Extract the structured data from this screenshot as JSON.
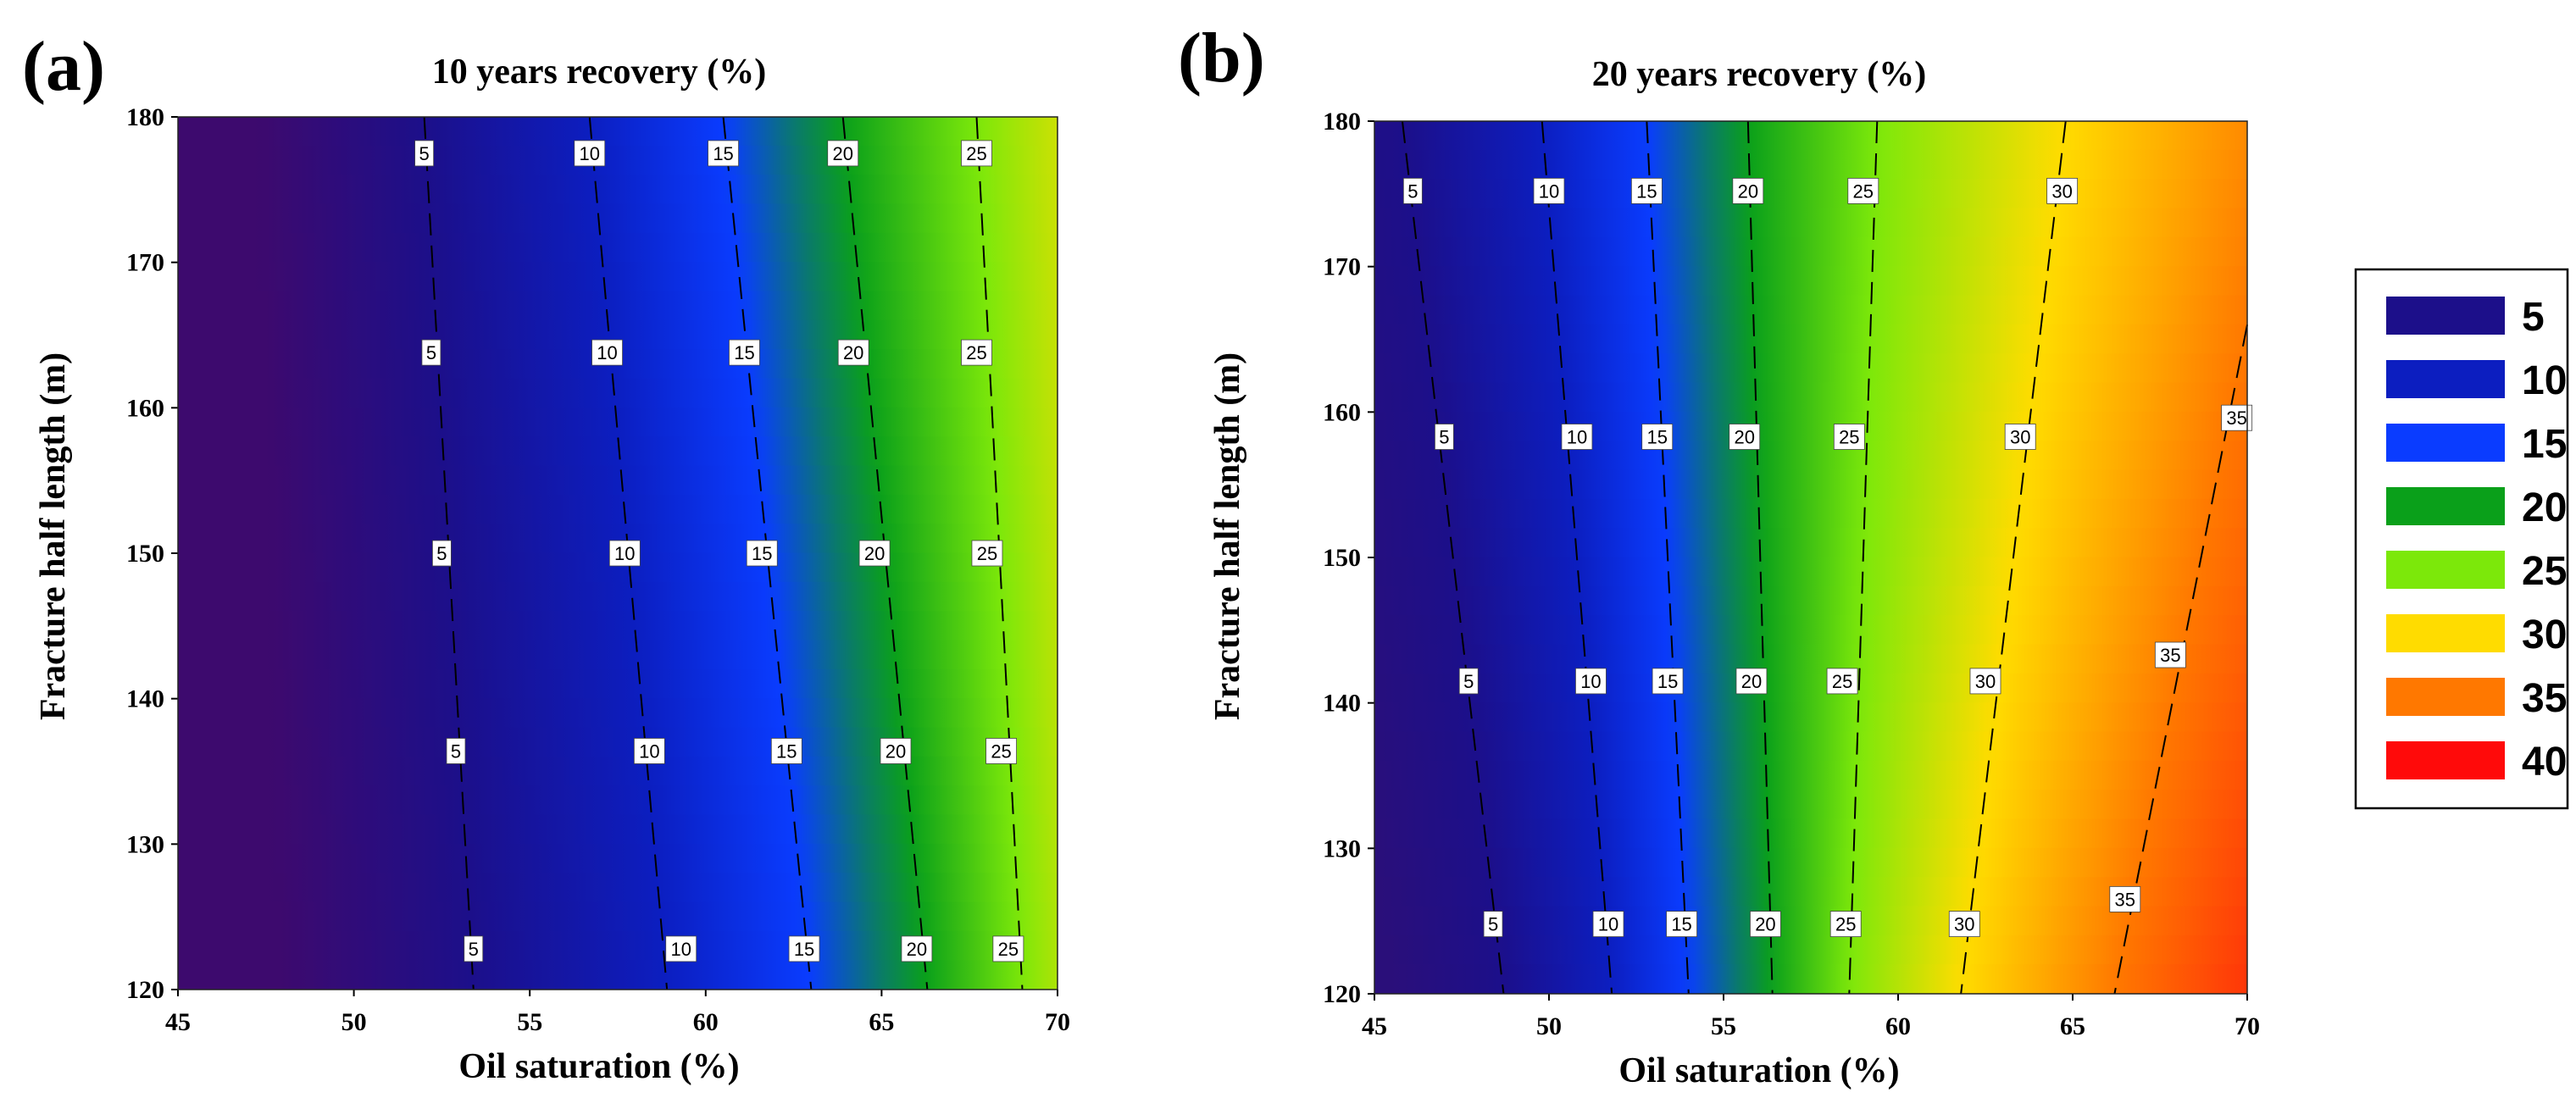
{
  "figure": {
    "legend": {
      "entries": [
        {
          "label": "5",
          "color": "#1c0f8a"
        },
        {
          "label": "10",
          "color": "#0c1ec0"
        },
        {
          "label": "15",
          "color": "#0a3cff"
        },
        {
          "label": "20",
          "color": "#0aa01a"
        },
        {
          "label": "25",
          "color": "#7ce80a"
        },
        {
          "label": "30",
          "color": "#ffdc00"
        },
        {
          "label": "35",
          "color": "#ff7800"
        },
        {
          "label": "40",
          "color": "#ff0a0a"
        }
      ]
    }
  },
  "chart_data": [
    {
      "type": "heatmap",
      "panel": "(a)",
      "title": "10 years recovery (%)",
      "xlabel": "Oil saturation (%)",
      "ylabel": "Fracture half length (m)",
      "xlim": [
        45,
        70
      ],
      "ylim": [
        120,
        180
      ],
      "xticks": [
        45,
        50,
        55,
        60,
        65,
        70
      ],
      "yticks": [
        120,
        130,
        140,
        150,
        160,
        170,
        180
      ],
      "color_stops": [
        {
          "v": 0,
          "c": "#3d0a6e"
        },
        {
          "v": 5,
          "c": "#1c0f8a"
        },
        {
          "v": 10,
          "c": "#0c1ec0"
        },
        {
          "v": 15,
          "c": "#0a3cff"
        },
        {
          "v": 18,
          "c": "#0a7a6a"
        },
        {
          "v": 20,
          "c": "#0aa01a"
        },
        {
          "v": 25,
          "c": "#7ce80a"
        },
        {
          "v": 30,
          "c": "#ffdc00"
        }
      ],
      "contours": [
        {
          "level": 5,
          "points": [
            [
              52.0,
              180
            ],
            [
              53.4,
              120
            ]
          ],
          "labels": [
            [
              52.0,
              177.5
            ],
            [
              52.2,
              163.8
            ],
            [
              52.5,
              150
            ],
            [
              52.9,
              136.4
            ],
            [
              53.4,
              122.8
            ]
          ]
        },
        {
          "level": 10,
          "points": [
            [
              56.7,
              180
            ],
            [
              58.9,
              120
            ]
          ],
          "labels": [
            [
              56.7,
              177.5
            ],
            [
              57.2,
              163.8
            ],
            [
              57.7,
              150
            ],
            [
              58.4,
              136.4
            ],
            [
              59.3,
              122.8
            ]
          ]
        },
        {
          "level": 15,
          "points": [
            [
              60.5,
              180
            ],
            [
              63.0,
              120
            ]
          ],
          "labels": [
            [
              60.5,
              177.5
            ],
            [
              61.1,
              163.8
            ],
            [
              61.6,
              150
            ],
            [
              62.3,
              136.4
            ],
            [
              62.8,
              122.8
            ]
          ]
        },
        {
          "level": 20,
          "points": [
            [
              63.9,
              180
            ],
            [
              66.3,
              120
            ]
          ],
          "labels": [
            [
              63.9,
              177.5
            ],
            [
              64.2,
              163.8
            ],
            [
              64.8,
              150
            ],
            [
              65.4,
              136.4
            ],
            [
              66.0,
              122.8
            ]
          ]
        },
        {
          "level": 25,
          "points": [
            [
              67.7,
              180
            ],
            [
              69.0,
              120
            ]
          ],
          "labels": [
            [
              67.7,
              177.5
            ],
            [
              67.7,
              163.8
            ],
            [
              68.0,
              150
            ],
            [
              68.4,
              136.4
            ],
            [
              68.6,
              122.8
            ]
          ]
        }
      ]
    },
    {
      "type": "heatmap",
      "panel": "(b)",
      "title": "20 years recovery (%)",
      "xlabel": "Oil saturation (%)",
      "ylabel": "Fracture half length (m)",
      "xlim": [
        45,
        70
      ],
      "ylim": [
        120,
        180
      ],
      "xticks": [
        45,
        50,
        55,
        60,
        65,
        70
      ],
      "yticks": [
        120,
        130,
        140,
        150,
        160,
        170,
        180
      ],
      "color_stops": [
        {
          "v": 0,
          "c": "#2a0f7a"
        },
        {
          "v": 5,
          "c": "#1c0f8a"
        },
        {
          "v": 10,
          "c": "#0c1ec0"
        },
        {
          "v": 15,
          "c": "#0a3cff"
        },
        {
          "v": 18,
          "c": "#0a7a6a"
        },
        {
          "v": 20,
          "c": "#0aa01a"
        },
        {
          "v": 25,
          "c": "#7ce80a"
        },
        {
          "v": 30,
          "c": "#ffdc00"
        },
        {
          "v": 35,
          "c": "#ff7800"
        },
        {
          "v": 40,
          "c": "#ff2a0a"
        }
      ],
      "contours": [
        {
          "level": 5,
          "points": [
            [
              45.8,
              180
            ],
            [
              48.7,
              120
            ]
          ],
          "labels": [
            [
              46.1,
              175.2
            ],
            [
              47.0,
              158.3
            ],
            [
              47.7,
              141.5
            ],
            [
              48.4,
              124.8
            ]
          ]
        },
        {
          "level": 10,
          "points": [
            [
              49.8,
              180
            ],
            [
              51.8,
              120
            ]
          ],
          "labels": [
            [
              50.0,
              175.2
            ],
            [
              50.8,
              158.3
            ],
            [
              51.2,
              141.5
            ],
            [
              51.7,
              124.8
            ]
          ]
        },
        {
          "level": 15,
          "points": [
            [
              52.8,
              180
            ],
            [
              54.0,
              120
            ]
          ],
          "labels": [
            [
              52.8,
              175.2
            ],
            [
              53.1,
              158.3
            ],
            [
              53.4,
              141.5
            ],
            [
              53.8,
              124.8
            ]
          ]
        },
        {
          "level": 20,
          "points": [
            [
              55.7,
              180
            ],
            [
              56.4,
              120
            ]
          ],
          "labels": [
            [
              55.7,
              175.2
            ],
            [
              55.6,
              158.3
            ],
            [
              55.8,
              141.5
            ],
            [
              56.2,
              124.8
            ]
          ]
        },
        {
          "level": 25,
          "points": [
            [
              59.4,
              180
            ],
            [
              58.6,
              120
            ]
          ],
          "labels": [
            [
              59.0,
              175.2
            ],
            [
              58.6,
              158.3
            ],
            [
              58.4,
              141.5
            ],
            [
              58.5,
              124.8
            ]
          ]
        },
        {
          "level": 30,
          "points": [
            [
              64.8,
              180
            ],
            [
              61.8,
              120
            ]
          ],
          "labels": [
            [
              64.7,
              175.2
            ],
            [
              63.5,
              158.3
            ],
            [
              62.5,
              141.5
            ],
            [
              61.9,
              124.8
            ]
          ]
        },
        {
          "level": 35,
          "points": [
            [
              70.0,
              166
            ],
            [
              66.2,
              120
            ]
          ],
          "labels": [
            [
              69.7,
              159.6
            ],
            [
              67.8,
              143.3
            ],
            [
              66.5,
              126.5
            ]
          ]
        }
      ]
    }
  ]
}
